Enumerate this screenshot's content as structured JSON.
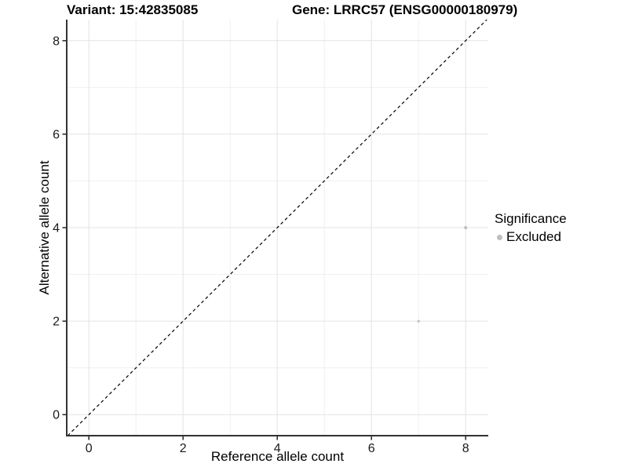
{
  "chart_data": {
    "type": "scatter",
    "title_left": "Variant: 15:42835085",
    "title_right": "Gene: LRRC57 (ENSG00000180979)",
    "xlabel": "Reference allele count",
    "ylabel": "Alternative allele count",
    "xlim": [
      -0.47,
      8.48
    ],
    "ylim": [
      -0.45,
      8.45
    ],
    "x_major_ticks": [
      0,
      2,
      4,
      6,
      8
    ],
    "y_major_ticks": [
      0,
      2,
      4,
      6,
      8
    ],
    "x_minor_ticks": [
      1,
      3,
      5,
      7
    ],
    "y_minor_ticks": [
      1,
      3,
      5,
      7
    ],
    "grid": true,
    "identity_line": {
      "shown": true,
      "style": "dashed",
      "color": "#000000",
      "equation": "y = x"
    },
    "series": [
      {
        "name": "Excluded",
        "color": "#bebebe",
        "points": [
          {
            "x": 8,
            "y": 4,
            "r": 2.0
          },
          {
            "x": 7,
            "y": 2,
            "r": 1.6
          }
        ]
      }
    ],
    "legend": {
      "position": "right",
      "title": "Significance",
      "items": [
        {
          "label": "Excluded",
          "color": "#bebebe",
          "marker": "circle"
        }
      ]
    },
    "colors": {
      "background": "#ffffff",
      "grid_major": "#e3e3e3",
      "grid_minor": "#f0f0f0",
      "axis_line": "#333333",
      "tick_text": "#1a1a1a",
      "point": "#bebebe"
    }
  }
}
